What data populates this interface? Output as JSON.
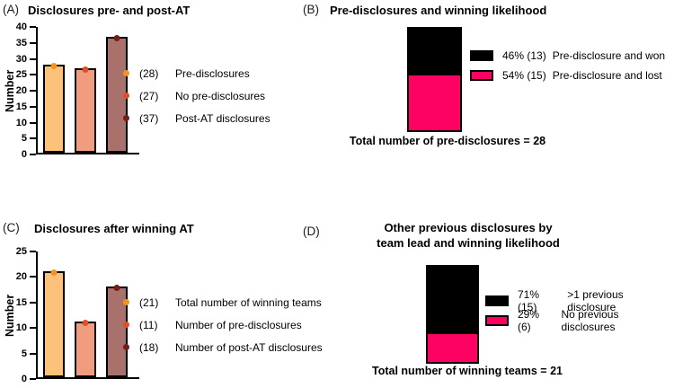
{
  "figure": {
    "background": "#ffffff"
  },
  "chart_data": [
    {
      "id": "A",
      "panel_label": "(A)",
      "type": "bar",
      "title": "Disclosures pre- and post-AT",
      "ylabel": "Number",
      "ylim": [
        0,
        40
      ],
      "yticks": [
        0,
        5,
        10,
        15,
        20,
        25,
        30,
        35,
        40
      ],
      "grid": false,
      "legend_position": "right",
      "categories": [
        "Pre-disclosures",
        "No pre-disclosures",
        "Post-AT disclosures"
      ],
      "values": [
        28,
        27,
        37
      ],
      "bar_colors": [
        "#FCC279",
        "#EF9D7E",
        "#A8716C"
      ],
      "marker_colors": [
        "#F79221",
        "#E04F26",
        "#7C1A15"
      ],
      "legend": [
        {
          "count": "(28)",
          "label": "Pre-disclosures",
          "color": "#F79221"
        },
        {
          "count": "(27)",
          "label": "No pre-disclosures",
          "color": "#E04F26"
        },
        {
          "count": "(37)",
          "label": "Post-AT disclosures",
          "color": "#7C1A15"
        }
      ]
    },
    {
      "id": "B",
      "panel_label": "(B)",
      "type": "stacked-bar",
      "title": "Pre-disclosures and winning likelihood",
      "total": 28,
      "caption": "Total number of pre-disclosures = 28",
      "legend_position": "right",
      "segments": [
        {
          "pct": 46,
          "count": 13,
          "pct_label": "46% (13)",
          "label": "Pre-disclosure and won",
          "color": "#000000"
        },
        {
          "pct": 54,
          "count": 15,
          "pct_label": "54% (15)",
          "label": "Pre-disclosure and lost",
          "color": "#FE0263"
        }
      ]
    },
    {
      "id": "C",
      "panel_label": "(C)",
      "type": "bar",
      "title": "Disclosures after winning AT",
      "ylabel": "Number",
      "ylim": [
        0,
        25
      ],
      "yticks": [
        0,
        5,
        10,
        15,
        20,
        25
      ],
      "grid": false,
      "legend_position": "right",
      "categories": [
        "Total number of winning teams",
        "Number of pre-disclosures",
        "Number of post-AT disclosures"
      ],
      "values": [
        21,
        11,
        18
      ],
      "bar_colors": [
        "#FCC279",
        "#EF9D7E",
        "#A8716C"
      ],
      "marker_colors": [
        "#F79221",
        "#E04F26",
        "#7C1A15"
      ],
      "legend": [
        {
          "count": "(21)",
          "label": "Total number of winning teams",
          "color": "#F79221"
        },
        {
          "count": "(11)",
          "label": "Number of pre-disclosures",
          "color": "#E04F26"
        },
        {
          "count": "(18)",
          "label": "Number of post-AT disclosures",
          "color": "#7C1A15"
        }
      ]
    },
    {
      "id": "D",
      "panel_label": "(D)",
      "type": "stacked-bar",
      "title": "Other previous disclosures by\nteam lead and winning likelihood",
      "total": 21,
      "caption": "Total number of winning teams = 21",
      "legend_position": "right",
      "segments": [
        {
          "pct": 71,
          "count": 15,
          "pct_label": "71% (15)",
          "label": ">1 previous disclosure",
          "color": "#000000"
        },
        {
          "pct": 29,
          "count": 6,
          "pct_label": "29% (6)",
          "label": "No previous disclosures",
          "color": "#FE0263"
        }
      ]
    }
  ]
}
